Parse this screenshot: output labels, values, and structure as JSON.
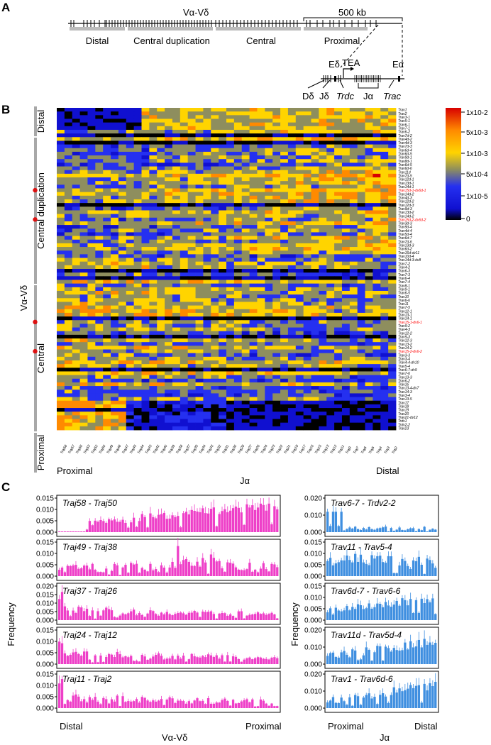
{
  "panels": {
    "a": "A",
    "b": "B",
    "c": "C"
  },
  "locus": {
    "top_label": "Vα-Vδ",
    "scale_label": "500 kb",
    "regions": [
      "Distal",
      "Central duplication",
      "Central",
      "Proximal"
    ],
    "inset": {
      "e_delta": "Eδ",
      "tea": "TEA",
      "e_alpha": "Eα",
      "d_delta": "Dδ",
      "j_delta": "Jδ",
      "trdc": "Trdc",
      "j_alpha": "Jα",
      "trac": "Trac"
    }
  },
  "heatmap": {
    "y_axis_label": "Vα-Vδ",
    "group_labels": [
      "Distal",
      "Central duplication",
      "Central",
      "Proximal"
    ],
    "x_axis_label": "Jα",
    "x_left": "Proximal",
    "x_right": "Distal",
    "color_ticks": [
      "1x10-2",
      "5x10-3",
      "1x10-3",
      "5x10-4",
      "1x10-5",
      "0"
    ],
    "colors": {
      "scale": [
        "#000000",
        "#1010d0",
        "#2530f0",
        "#8e8e5e",
        "#ffd400",
        "#ff8a00",
        "#d80000"
      ],
      "highlight": "#ff0000"
    },
    "j_genes": [
      "Traj58",
      "Traj57",
      "Traj56",
      "Traj53",
      "Traj52",
      "Traj50",
      "Traj49",
      "Traj48",
      "Traj47",
      "Traj45",
      "Traj44",
      "Traj43",
      "Traj42",
      "Traj40",
      "Traj39",
      "Traj38",
      "Traj37",
      "Traj35",
      "Traj34",
      "Traj33",
      "Traj32",
      "Traj31",
      "Traj30",
      "Traj28",
      "Traj27",
      "Traj26",
      "Traj24",
      "Traj23",
      "Traj22",
      "Traj21",
      "Traj18",
      "Traj17",
      "Traj16",
      "Traj15",
      "Traj13",
      "Traj12",
      "Traj11",
      "Traj9",
      "Traj7",
      "Traj6",
      "Traj5",
      "Traj4",
      "Traj3",
      "Traj2"
    ],
    "v_genes": [
      "Trav1",
      "Trav2",
      "Trav3-1",
      "Trav5-1",
      "Trav6-1",
      "Trav7-1",
      "Trav6-2",
      "Trav7d-2",
      "Trav4d-2",
      "Trav4d-3",
      "Trav7d-3",
      "Trav6d-4",
      "Trav6d-5",
      "Trav9d-1",
      "Trav8d-1",
      "Trav6d-5",
      "Trav6d-6",
      "Trav11d",
      "Trav7d-5",
      "Trav12d-1",
      "Trav13d-1",
      "Trav14d-1",
      "Trav15d-1-dv6d-1",
      "Trav14d-2",
      "Trav4d-3",
      "Trav12d-2",
      "Trav12d-3",
      "Trav9d-3",
      "Trav13d-2",
      "Trav14d-2",
      "Trav15d-2-dv6d-2",
      "Trav3d-3",
      "Trav9d-4",
      "Trav4d-4",
      "Trav5d-4",
      "Trav6d-7",
      "Trav7d-6",
      "Trav13d-3",
      "Trav6d-2",
      "Trav16d-dv11",
      "Trav10d-4",
      "Trav14d-3-dv8",
      "Trav7-2",
      "Trav4-2",
      "Trav6-3",
      "Trav7-3",
      "Trav6-4",
      "Trav7-4",
      "Trav8-1",
      "Trav9-1",
      "Trav6-5",
      "Trav10",
      "Trav6-6",
      "Trav11",
      "Trav7-5",
      "Trav12-1",
      "Trav13-1",
      "Trav14-1",
      "Trav15-1-dv6-1",
      "Trav9-2",
      "Trav4-3",
      "Trav12-2",
      "Trav9-3",
      "Trav12-3",
      "Trav13-2",
      "Trav14-2",
      "Trav15-2-dv6-2",
      "Trav3-3",
      "Trav3-4",
      "Trav4-4-dv10",
      "Trav5-4",
      "Trav6-7-dv9",
      "Trav7-6",
      "Trav13-3",
      "Trav6-2",
      "Trav16",
      "Trav13-4-dv7",
      "Trav14-3",
      "Trav3-4",
      "Trav13-5",
      "Trav17",
      "Trav18",
      "Trav19",
      "Trav20",
      "Trav21-dv12",
      "Trdv1",
      "Trdv2-2",
      "Trav23"
    ],
    "highlighted": [
      "Trav15d-1-dv6d-1",
      "Trav15d-2-dv6d-2",
      "Trav15-1-dv6-1",
      "Trav15-2-dv6-2"
    ]
  },
  "bars": {
    "y_label": "Frequency",
    "left_x_label": "Vα-Vδ",
    "left_x_left": "Distal",
    "left_x_right": "Proximal",
    "right_x_label": "Jα",
    "right_x_left": "Proximal",
    "right_x_right": "Distal",
    "colors": {
      "left": "#ee3fc8",
      "right": "#3f8fe0"
    },
    "left": [
      {
        "title": "Traj58 - Traj50",
        "ticks": [
          "0.015",
          "0.010",
          "0.005",
          "0.000"
        ],
        "ymax": 0.015
      },
      {
        "title": "Traj49 - Traj38",
        "ticks": [
          "0.015",
          "0.010",
          "0.005",
          "0.000"
        ],
        "ymax": 0.015
      },
      {
        "title": "Traj37 - Traj26",
        "ticks": [
          "0.020",
          "0.015",
          "0.010",
          "0.005",
          "0.000"
        ],
        "ymax": 0.02
      },
      {
        "title": "Traj24 - Traj12",
        "ticks": [
          "0.015",
          "0.010",
          "0.005",
          "0.000"
        ],
        "ymax": 0.015
      },
      {
        "title": "Traj11 - Traj2",
        "ticks": [
          "0.015",
          "0.010",
          "0.005",
          "0.000"
        ],
        "ymax": 0.015
      }
    ],
    "right": [
      {
        "title": "Trav6-7 - Trdv2-2",
        "ticks": [
          "0.020",
          "0.010",
          "0.000"
        ],
        "ymax": 0.02
      },
      {
        "title": "Trav11 - Trav5-4",
        "ticks": [
          "0.015",
          "0.010",
          "0.005",
          "0.000"
        ],
        "ymax": 0.015
      },
      {
        "title": "Trav6d-7 - Trav6-6",
        "ticks": [
          "0.015",
          "0.010",
          "0.005",
          "0.000"
        ],
        "ymax": 0.015
      },
      {
        "title": "Trav11d - Trav5d-4",
        "ticks": [
          "0.020",
          "0.010",
          "0.000"
        ],
        "ymax": 0.02
      },
      {
        "title": "Trav1 - Trav6d-6",
        "ticks": [
          "0.020",
          "0.010",
          "0.000"
        ],
        "ymax": 0.02
      }
    ]
  }
}
